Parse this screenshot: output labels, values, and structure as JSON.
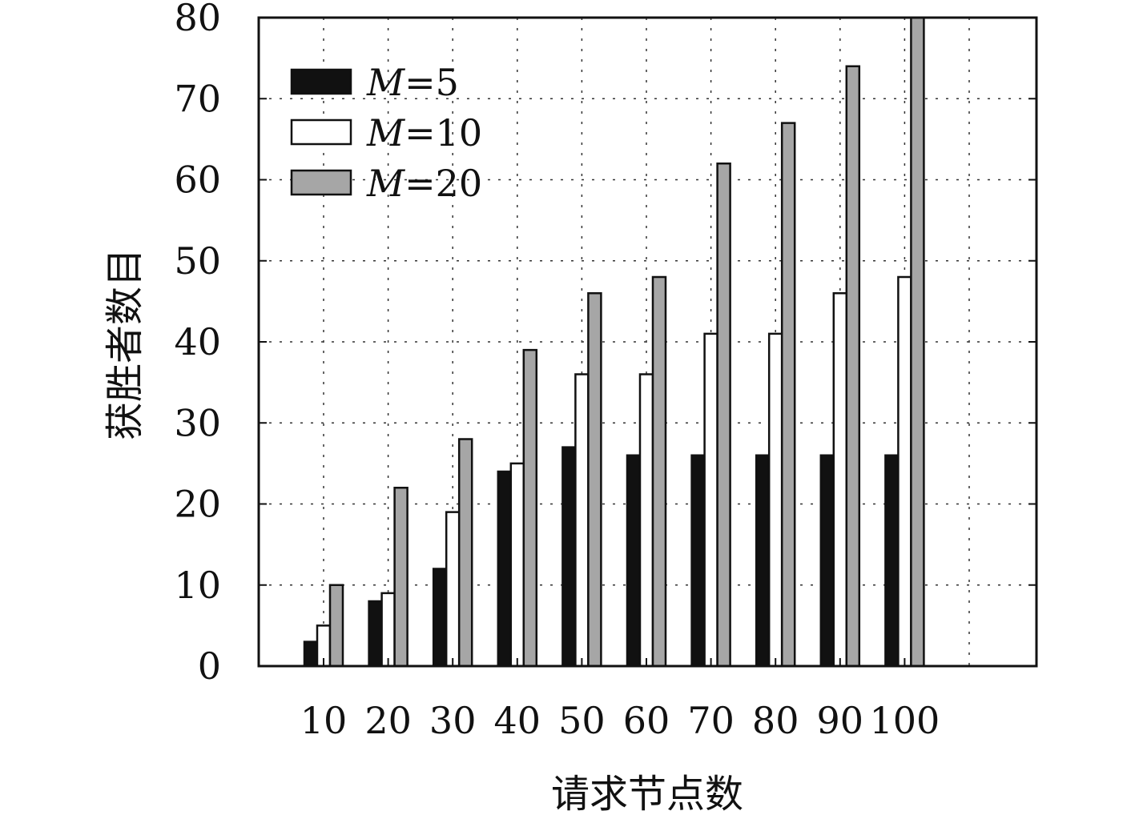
{
  "chart_data": {
    "type": "bar",
    "title": "",
    "xlabel": "请求节点数",
    "ylabel": "获胜者数目",
    "categories": [
      "10",
      "20",
      "30",
      "40",
      "50",
      "60",
      "70",
      "80",
      "90",
      "100"
    ],
    "ylim": [
      0,
      80
    ],
    "yticks": [
      "0",
      "10",
      "20",
      "30",
      "40",
      "50",
      "60",
      "70",
      "80"
    ],
    "grid": true,
    "legend_position": "top-left",
    "series": [
      {
        "name": "M=5",
        "name_var": "M",
        "name_eq": "=5",
        "color": "#111111",
        "values": [
          3,
          8,
          12,
          24,
          27,
          26,
          26,
          26,
          26,
          26
        ]
      },
      {
        "name": "M=10",
        "name_var": "M",
        "name_eq": "=10",
        "color": "#ffffff",
        "values": [
          5,
          9,
          19,
          25,
          36,
          36,
          41,
          41,
          46,
          48
        ]
      },
      {
        "name": "M=20",
        "name_var": "M",
        "name_eq": "=20",
        "color": "#a6a6a6",
        "values": [
          10,
          22,
          28,
          39,
          46,
          48,
          62,
          67,
          74,
          80
        ]
      }
    ]
  }
}
